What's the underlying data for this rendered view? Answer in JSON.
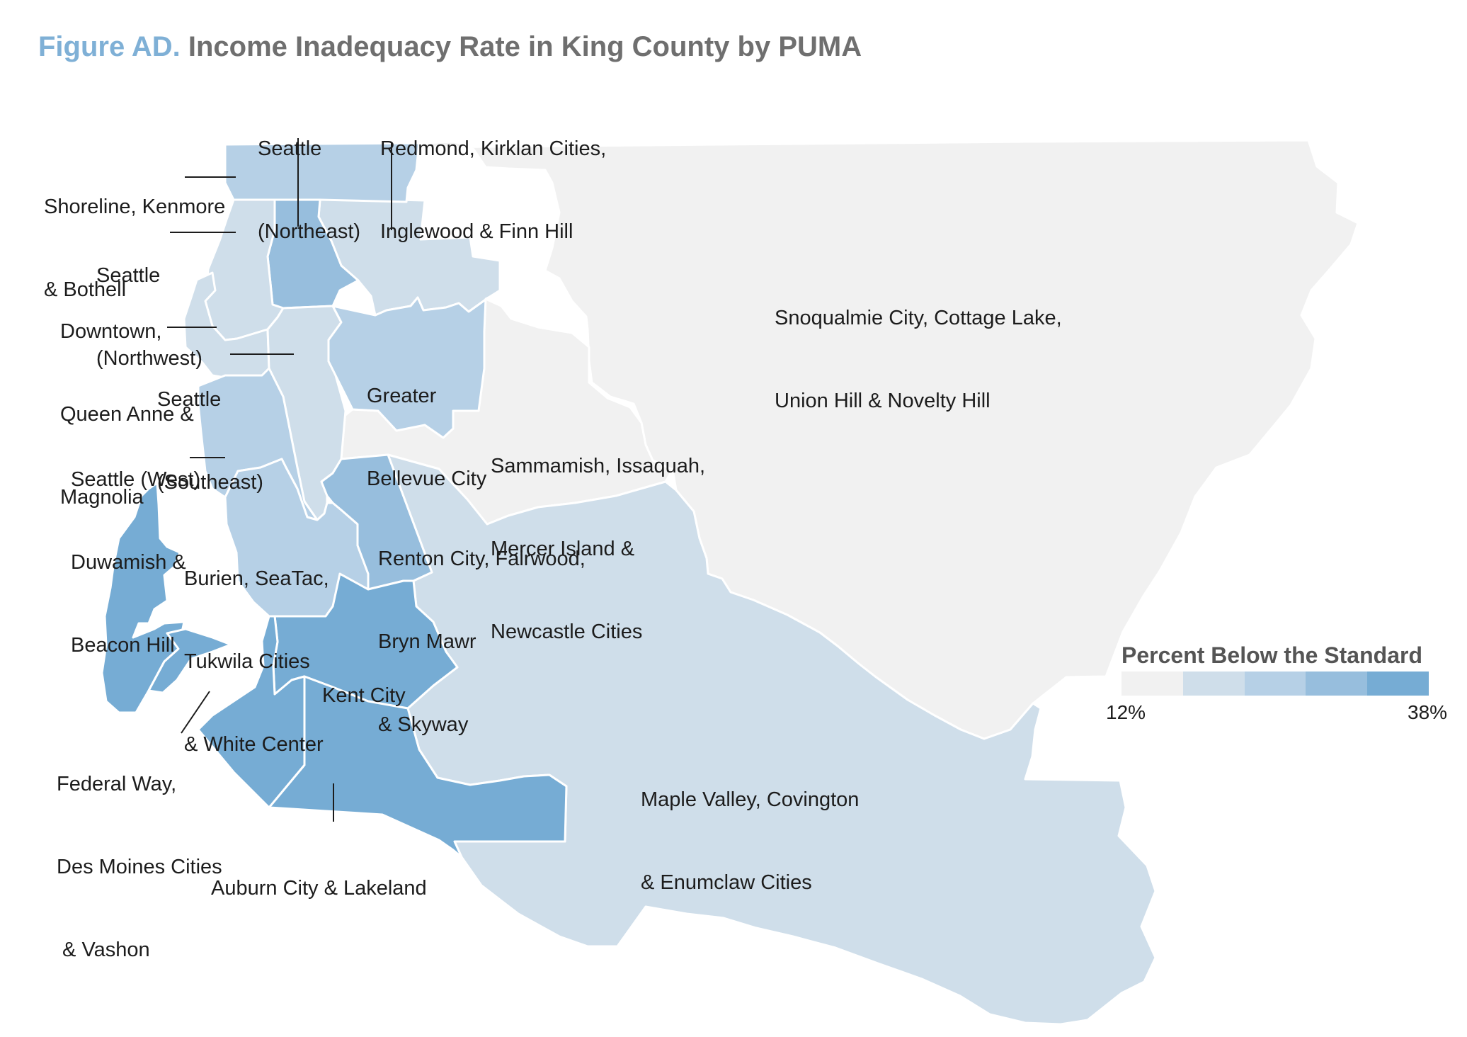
{
  "title": {
    "figure_label": "Figure AD.",
    "text": "Income Inadequacy Rate in King County by PUMA"
  },
  "colors": {
    "c1": "#f1f1f1",
    "c2": "#cfdeea",
    "c3": "#b6d0e6",
    "c4": "#97bedd",
    "c5": "#76acd4",
    "border": "#ffffff",
    "leader": "#1c1c1c"
  },
  "regions": [
    {
      "id": "snoqualmie",
      "lines": [
        "Snoqualmie City, Cottage Lake,",
        "Union Hill & Novelty Hill"
      ],
      "level": 1
    },
    {
      "id": "sammamish",
      "lines": [
        "Sammamish, Issaquah,",
        "Mercer Island &",
        "Newcastle Cities"
      ],
      "level": 1
    },
    {
      "id": "maple-valley",
      "lines": [
        "Maple Valley, Covington",
        "& Enumclaw Cities"
      ],
      "level": 2
    },
    {
      "id": "redmond",
      "lines": [
        "Redmond, Kirklan Cities,",
        "Inglewood & Finn Hill"
      ],
      "level": 2
    },
    {
      "id": "seattle-northeast",
      "lines": [
        "Seattle",
        "(Northeast)"
      ],
      "level": 4
    },
    {
      "id": "shoreline",
      "lines": [
        "Shoreline, Kenmore",
        "& Bothell"
      ],
      "level": 3
    },
    {
      "id": "seattle-northwest",
      "lines": [
        "Seattle",
        "(Northwest)"
      ],
      "level": 2
    },
    {
      "id": "downtown",
      "lines": [
        "Downtown,",
        "Queen Anne &",
        "Magnolia"
      ],
      "level": 2
    },
    {
      "id": "seattle-southeast",
      "lines": [
        "Seattle",
        "(Southeast)"
      ],
      "level": 2
    },
    {
      "id": "greater-bellevue",
      "lines": [
        "Greater",
        "Bellevue City"
      ],
      "level": 3
    },
    {
      "id": "seattle-west",
      "lines": [
        "Seattle (West)",
        "Duwamish &",
        "Beacon Hill"
      ],
      "level": 3
    },
    {
      "id": "burien",
      "lines": [
        "Burien, SeaTac,",
        "Tukwila Cities",
        "& White Center"
      ],
      "level": 3
    },
    {
      "id": "renton",
      "lines": [
        "Renton City, Fairwood,",
        "Bryn Mawr",
        "& Skyway"
      ],
      "level": 4
    },
    {
      "id": "kent",
      "lines": [
        "Kent City"
      ],
      "level": 5
    },
    {
      "id": "federal-way",
      "lines": [
        "Federal Way,",
        "Des Moines Cities",
        " & Vashon"
      ],
      "level": 5
    },
    {
      "id": "auburn",
      "lines": [
        "Auburn City & Lakeland"
      ],
      "level": 5
    }
  ],
  "legend": {
    "title": "Percent Below the Standard",
    "min_label": "12%",
    "max_label": "38%",
    "min_value": 12,
    "max_value": 38,
    "steps": 5
  }
}
